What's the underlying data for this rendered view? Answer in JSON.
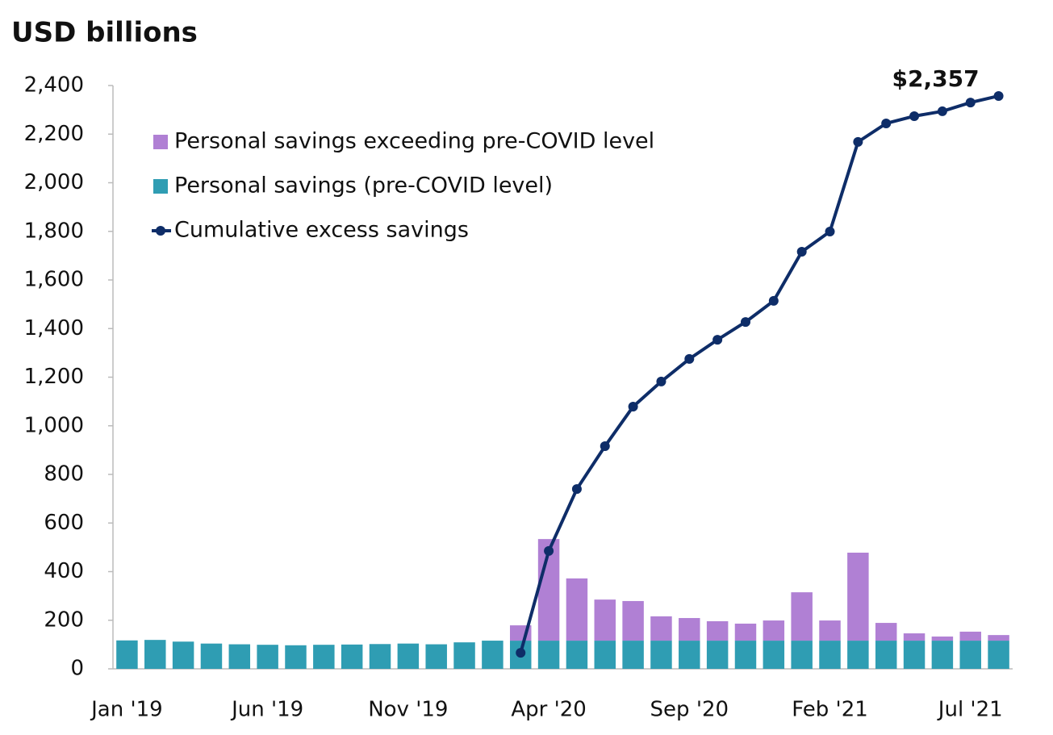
{
  "chart_data": {
    "type": "bar",
    "title": "USD billions",
    "categories": [
      "Jan '19",
      null,
      null,
      null,
      null,
      "Jun '19",
      null,
      null,
      null,
      null,
      "Nov '19",
      null,
      null,
      null,
      null,
      "Apr '20",
      null,
      null,
      null,
      null,
      "Sep '20",
      null,
      null,
      null,
      null,
      "Feb '21",
      null,
      null,
      null,
      null,
      "Jul '21",
      null
    ],
    "series": [
      {
        "name": "Personal savings (pre-COVID level)",
        "type": "bar",
        "color": "#2f9db3",
        "values": [
          117,
          119,
          112,
          104,
          101,
          99,
          97,
          99,
          100,
          102,
          104,
          101,
          109,
          116,
          116,
          116,
          116,
          116,
          116,
          116,
          116,
          116,
          116,
          116,
          116,
          116,
          116,
          116,
          116,
          116,
          116,
          116
        ]
      },
      {
        "name": "Personal savings exceeding pre-COVID level",
        "type": "bar",
        "color": "#b080d4",
        "values": [
          null,
          null,
          null,
          null,
          null,
          null,
          null,
          null,
          null,
          null,
          null,
          null,
          null,
          null,
          63,
          418,
          256,
          169,
          163,
          100,
          93,
          80,
          70,
          83,
          199,
          83,
          362,
          73,
          30,
          17,
          37,
          23
        ]
      },
      {
        "name": "Cumulative excess savings",
        "type": "line",
        "color": "#0e2d68",
        "values": [
          null,
          null,
          null,
          null,
          null,
          null,
          null,
          null,
          null,
          null,
          null,
          null,
          null,
          null,
          66,
          485,
          740,
          916,
          1079,
          1182,
          1275,
          1354,
          1427,
          1514,
          1716,
          1799,
          2168,
          2244,
          2274,
          2294,
          2330,
          2357
        ],
        "value_labels": [
          null,
          null,
          null,
          null,
          null,
          null,
          null,
          null,
          null,
          null,
          null,
          null,
          null,
          null,
          null,
          null,
          null,
          null,
          null,
          null,
          null,
          null,
          null,
          null,
          null,
          null,
          null,
          null,
          null,
          null,
          null,
          "$2,357"
        ]
      }
    ],
    "ylim": [
      0,
      2400
    ],
    "yticks": [
      0,
      {
        "value": 200,
        "label": "200"
      },
      400,
      600,
      800,
      {
        "value": 1000,
        "label": "1,000"
      },
      {
        "value": 1200,
        "label": "1,200"
      },
      {
        "value": 1400,
        "label": "1,400"
      },
      {
        "value": 1600,
        "label": "1,600"
      },
      {
        "value": 1800,
        "label": "1,800"
      },
      {
        "value": 2000,
        "label": "2,000"
      },
      {
        "value": 2200,
        "label": "2,200"
      },
      {
        "value": 2400,
        "label": "2,400"
      }
    ],
    "legend": "upper left",
    "grid": false
  }
}
